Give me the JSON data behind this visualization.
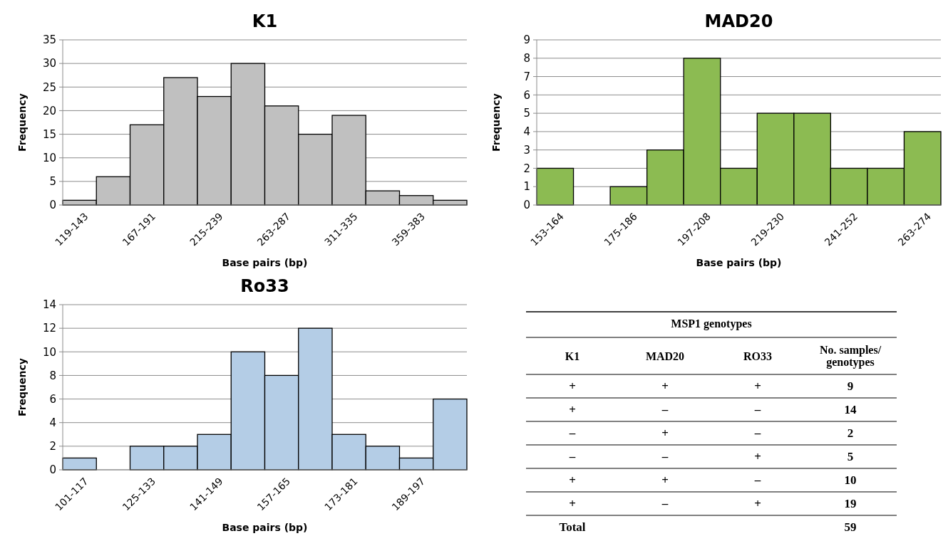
{
  "chart_data": [
    {
      "type": "bar",
      "title": "K1",
      "xlabel": "Base pairs (bp)",
      "ylabel": "Frequency",
      "categories": [
        "119-143",
        null,
        "167-191",
        null,
        "215-239",
        null,
        "263-287",
        null,
        "311-335",
        null,
        "359-383",
        null
      ],
      "values": [
        1,
        6,
        17,
        27,
        23,
        30,
        21,
        15,
        19,
        3,
        2,
        1
      ],
      "color": "#c0c0c0",
      "ylim": [
        0,
        35
      ],
      "yticks": [
        0,
        5,
        10,
        15,
        20,
        25,
        30,
        35
      ],
      "grid": "y"
    },
    {
      "type": "bar",
      "title": "MAD20",
      "xlabel": "Base pairs (bp)",
      "ylabel": "Frequency",
      "categories": [
        "153-164",
        null,
        "175-186",
        null,
        "197-208",
        null,
        "219-230",
        null,
        "241-252",
        null,
        "263-274"
      ],
      "values": [
        2,
        0,
        1,
        3,
        8,
        2,
        5,
        5,
        2,
        2,
        4
      ],
      "color": "#8cbb52",
      "ylim": [
        0,
        9
      ],
      "yticks": [
        0,
        1,
        2,
        3,
        4,
        5,
        6,
        7,
        8,
        9
      ],
      "grid": "y"
    },
    {
      "type": "bar",
      "title": "Ro33",
      "xlabel": "Base pairs (bp)",
      "ylabel": "Frequency",
      "categories": [
        "101-117",
        null,
        "125-133",
        null,
        "141-149",
        null,
        "157-165",
        null,
        "173-181",
        null,
        "189-197",
        null
      ],
      "values": [
        1,
        0,
        2,
        2,
        3,
        10,
        8,
        12,
        3,
        2,
        1,
        6
      ],
      "color": "#b4cde6",
      "ylim": [
        0,
        14
      ],
      "yticks": [
        0,
        2,
        4,
        6,
        8,
        10,
        12,
        14
      ],
      "grid": "y"
    },
    {
      "type": "other",
      "title": "MSP1 genotypes",
      "categories": [
        "K1",
        "MAD20",
        "RO33",
        "No. samples/ genotypes"
      ],
      "cell_labels": [
        [
          "+",
          "+",
          "+",
          "9"
        ],
        [
          "+",
          "–",
          "–",
          "14"
        ],
        [
          "–",
          "+",
          "–",
          "2"
        ],
        [
          "–",
          "–",
          "+",
          "5"
        ],
        [
          "+",
          "+",
          "–",
          "10"
        ],
        [
          "+",
          "–",
          "+",
          "19"
        ],
        [
          "Total",
          null,
          null,
          "59"
        ]
      ]
    }
  ]
}
